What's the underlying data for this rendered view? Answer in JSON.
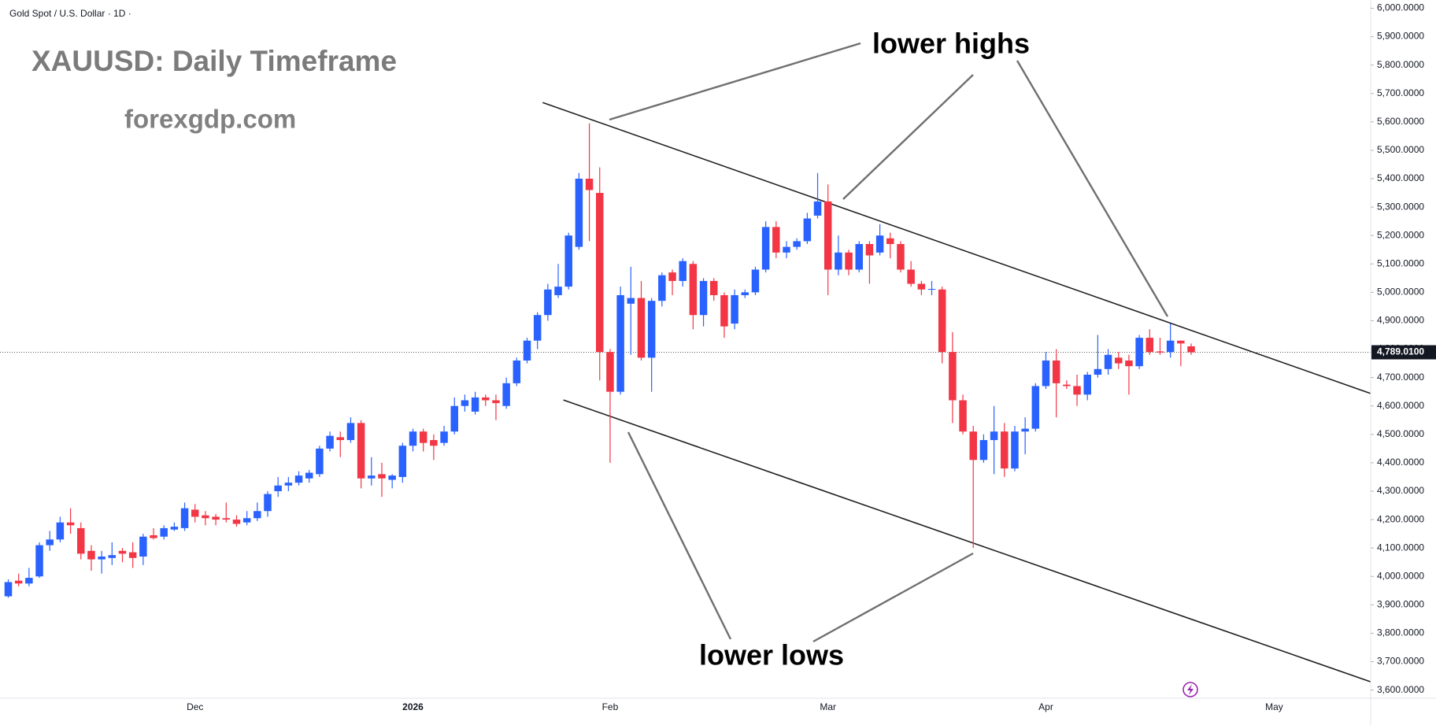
{
  "chart_data": {
    "type": "candlestick",
    "symbol_label": "Gold Spot / U.S. Dollar · 1D ·",
    "title": "XAUUSD: Daily Timeframe",
    "subtitle": "forexgdp.com",
    "annotations": [
      "lower highs",
      "lower lows"
    ],
    "up_color": "#2962ff",
    "down_color": "#f23645",
    "line_color": "#1e1e1e",
    "grid": false,
    "categories": [
      null,
      null,
      null,
      null,
      null,
      null,
      null,
      null,
      null,
      null,
      null,
      null,
      null,
      null,
      null,
      null,
      null,
      null,
      "Dec",
      null,
      null,
      null,
      null,
      null,
      null,
      null,
      null,
      null,
      null,
      null,
      null,
      null,
      null,
      null,
      null,
      null,
      null,
      null,
      null,
      "2026",
      null,
      null,
      null,
      null,
      null,
      null,
      null,
      null,
      null,
      null,
      null,
      null,
      null,
      null,
      null,
      null,
      null,
      null,
      "Feb",
      null,
      null,
      null,
      null,
      null,
      null,
      null,
      null,
      null,
      null,
      null,
      null,
      null,
      null,
      null,
      null,
      null,
      null,
      null,
      null,
      "Mar",
      null,
      null,
      null,
      null,
      null,
      null,
      null,
      null,
      null,
      null,
      null,
      null,
      null,
      null,
      null,
      null,
      null,
      null,
      null,
      null,
      "Apr",
      null,
      null,
      null,
      null,
      null,
      null,
      null,
      null,
      null,
      null,
      null,
      null,
      null,
      null,
      null,
      null,
      null,
      null,
      null,
      null,
      null,
      "May"
    ],
    "open": [
      3930,
      3985,
      3975,
      4000,
      4110,
      4130,
      4190,
      4170,
      4090,
      4060,
      4065,
      4090,
      4085,
      4070,
      4145,
      4140,
      4165,
      4170,
      4235,
      4215,
      4210,
      4205,
      4200,
      4190,
      4205,
      4230,
      4300,
      4320,
      4330,
      4345,
      4360,
      4450,
      4490,
      4480,
      4540,
      4345,
      4360,
      4340,
      4350,
      4460,
      4510,
      4480,
      4470,
      4510,
      4600,
      4580,
      4630,
      4620,
      4600,
      4680,
      4760,
      4830,
      4920,
      4990,
      5020,
      5160,
      5400,
      5350,
      4790,
      4650,
      4960,
      4980,
      4770,
      4970,
      5070,
      5040,
      5100,
      4920,
      5040,
      4990,
      4890,
      4990,
      5000,
      5080,
      5230,
      5140,
      5160,
      5180,
      5270,
      5320,
      5080,
      5140,
      5080,
      5170,
      5140,
      5190,
      5170,
      5080,
      5030,
      5010,
      5010,
      4790,
      4620,
      4510,
      4410,
      4480,
      4510,
      4380,
      4510,
      4520,
      4670,
      4760,
      4675,
      4670,
      4640,
      4710,
      4730,
      4770,
      4760,
      4740,
      4840,
      4792,
      4790,
      4830,
      4810,
      null,
      null,
      null,
      null,
      null,
      null,
      null,
      null
    ],
    "high": [
      3990,
      4010,
      4030,
      4120,
      4160,
      4210,
      4240,
      4190,
      4110,
      4090,
      4120,
      4100,
      4120,
      4150,
      4170,
      4180,
      4190,
      4260,
      4255,
      4230,
      4220,
      4260,
      4215,
      4230,
      4260,
      4300,
      4350,
      4350,
      4370,
      4375,
      4460,
      4510,
      4510,
      4560,
      4550,
      4420,
      4400,
      4360,
      4470,
      4520,
      4520,
      4500,
      4530,
      4630,
      4640,
      4650,
      4640,
      4640,
      4700,
      4770,
      4840,
      4930,
      5030,
      5100,
      5210,
      5420,
      5595,
      5440,
      4800,
      5020,
      5090,
      5040,
      4980,
      5070,
      5080,
      5120,
      5110,
      5050,
      5050,
      5000,
      5010,
      5010,
      5090,
      5250,
      5250,
      5180,
      5190,
      5280,
      5420,
      5380,
      5200,
      5150,
      5180,
      5180,
      5240,
      5210,
      5180,
      5110,
      5040,
      5040,
      5020,
      4860,
      4640,
      4530,
      4500,
      4600,
      4540,
      4530,
      4560,
      4680,
      4790,
      4800,
      4690,
      4710,
      4720,
      4850,
      4800,
      4790,
      4780,
      4850,
      4870,
      4840,
      4890,
      4830,
      4820,
      null,
      null,
      null,
      null,
      null,
      null,
      null,
      null
    ],
    "low": [
      3925,
      3965,
      3965,
      3995,
      4090,
      4120,
      4150,
      4060,
      4020,
      4010,
      4040,
      4050,
      4030,
      4040,
      4130,
      4130,
      4160,
      4160,
      4190,
      4180,
      4180,
      4190,
      4175,
      4180,
      4195,
      4210,
      4280,
      4300,
      4320,
      4330,
      4350,
      4440,
      4420,
      4470,
      4310,
      4320,
      4280,
      4310,
      4330,
      4440,
      4440,
      4410,
      4460,
      4500,
      4580,
      4570,
      4600,
      4550,
      4590,
      4670,
      4750,
      4800,
      4900,
      4980,
      5010,
      5150,
      5180,
      4690,
      4400,
      4640,
      4780,
      4760,
      4650,
      4950,
      4990,
      5020,
      4870,
      4880,
      4970,
      4840,
      4870,
      4980,
      4990,
      5070,
      5120,
      5120,
      5150,
      5170,
      5260,
      4990,
      5060,
      5060,
      5070,
      5030,
      5130,
      5120,
      5070,
      5020,
      4990,
      4990,
      4750,
      4540,
      4500,
      4100,
      4400,
      4360,
      4350,
      4370,
      4430,
      4510,
      4660,
      4560,
      4660,
      4600,
      4620,
      4700,
      4710,
      4730,
      4640,
      4730,
      4780,
      4780,
      4770,
      4740,
      4780,
      null,
      null,
      null,
      null,
      null,
      null,
      null,
      null
    ],
    "close": [
      3980,
      3975,
      3995,
      4110,
      4130,
      4190,
      4180,
      4080,
      4060,
      4070,
      4075,
      4080,
      4065,
      4140,
      4135,
      4170,
      4175,
      4240,
      4210,
      4205,
      4200,
      4200,
      4185,
      4205,
      4230,
      4290,
      4320,
      4330,
      4355,
      4365,
      4450,
      4495,
      4480,
      4540,
      4345,
      4355,
      4345,
      4355,
      4460,
      4510,
      4470,
      4460,
      4510,
      4600,
      4620,
      4630,
      4620,
      4610,
      4680,
      4760,
      4830,
      4920,
      5010,
      5020,
      5200,
      5400,
      5360,
      4790,
      4650,
      4990,
      4980,
      4770,
      4970,
      5060,
      5040,
      5110,
      4920,
      5040,
      4990,
      4880,
      4990,
      5000,
      5080,
      5230,
      5140,
      5160,
      5180,
      5260,
      5320,
      5080,
      5140,
      5080,
      5170,
      5130,
      5200,
      5170,
      5080,
      5030,
      5010,
      5012,
      4790,
      4620,
      4510,
      4410,
      4480,
      4510,
      4380,
      4510,
      4520,
      4670,
      4760,
      4680,
      4670,
      4640,
      4710,
      4730,
      4780,
      4750,
      4740,
      4840,
      4790,
      4788,
      4830,
      4820,
      4789.01,
      null,
      null,
      null,
      null,
      null,
      null,
      null,
      null
    ],
    "last_price": {
      "value": 4789.01,
      "label": "4,789.0100"
    },
    "trendlines": [
      {
        "x": [
          51.5,
          131.3
        ],
        "y": [
          5668,
          4644
        ]
      },
      {
        "x": [
          53.5,
          131.3
        ],
        "y": [
          4621,
          3629
        ]
      }
    ],
    "ylim": [
      3574,
      6029
    ],
    "yticks": [
      {
        "value": 3600,
        "label": "3,600.0000"
      },
      {
        "value": 3700,
        "label": "3,700.0000"
      },
      {
        "value": 3800,
        "label": "3,800.0000"
      },
      {
        "value": 3900,
        "label": "3,900.0000"
      },
      {
        "value": 4000,
        "label": "4,000.0000"
      },
      {
        "value": 4100,
        "label": "4,100.0000"
      },
      {
        "value": 4200,
        "label": "4,200.0000"
      },
      {
        "value": 4300,
        "label": "4,300.0000"
      },
      {
        "value": 4400,
        "label": "4,400.0000"
      },
      {
        "value": 4500,
        "label": "4,500.0000"
      },
      {
        "value": 4600,
        "label": "4,600.0000"
      },
      {
        "value": 4700,
        "label": "4,700.0000"
      },
      {
        "value": 4800,
        "label": "4,800.0000"
      },
      {
        "value": 4900,
        "label": "4,900.0000"
      },
      {
        "value": 5000,
        "label": "5,000.0000"
      },
      {
        "value": 5100,
        "label": "5,100.0000"
      },
      {
        "value": 5200,
        "label": "5,200.0000"
      },
      {
        "value": 5300,
        "label": "5,300.0000"
      },
      {
        "value": 5400,
        "label": "5,400.0000"
      },
      {
        "value": 5500,
        "label": "5,500.0000"
      },
      {
        "value": 5600,
        "label": "5,600.0000"
      },
      {
        "value": 5700,
        "label": "5,700.0000"
      },
      {
        "value": 5800,
        "label": "5,800.0000"
      },
      {
        "value": 5900,
        "label": "5,900.0000"
      },
      {
        "value": 6000,
        "label": "6,000.0000"
      }
    ]
  }
}
